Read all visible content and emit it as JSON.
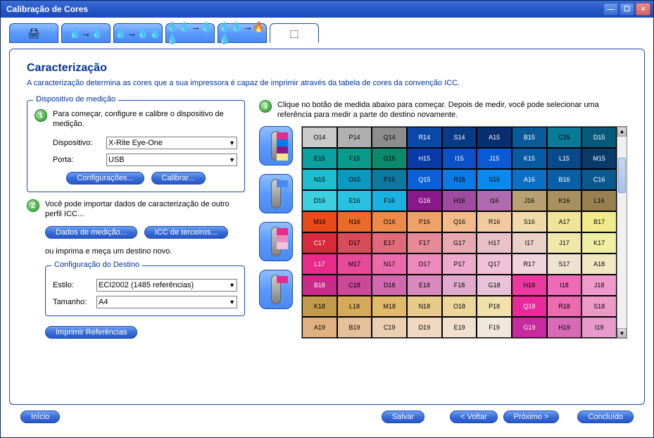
{
  "window": {
    "title": "Calibração de Cores"
  },
  "heading": "Caracterização",
  "description": "A caracterização determina as cores que a sua impressora é capaz de imprimir através da tabela de cores da convenção ICC.",
  "device_group": {
    "legend": "Dispositivo de medição",
    "step1_text": "Para começar, configure e calibre o dispositivo de medição.",
    "device_label": "Dispositivo:",
    "device_value": "X-Rite Eye-One",
    "port_label": "Porta:",
    "port_value": "USB",
    "config_btn": "Configurações...",
    "calib_btn": "Calibrar..."
  },
  "step2": {
    "text": "Você pode importar dados de caracterização de outro perfil ICC...",
    "data_btn": "Dados de medição...",
    "third_btn": "ICC de terceiros...",
    "print_new": "ou imprima e meça um destino novo."
  },
  "dest_group": {
    "legend": "Configuração do Destino",
    "style_label": "Estilo:",
    "style_value": "ECI2002 (1485 referências)",
    "size_label": "Tamanho:",
    "size_value": "A4",
    "print_ref_btn": "Imprimir Referências"
  },
  "step3": {
    "text": "Clique no botão de medida abaixo para começar. Depois de medir, você pode selecionar uma referência para medir a parte do destino novamente."
  },
  "grid": {
    "selected": "A17",
    "rows": [
      [
        {
          "l": "O14",
          "c": "#c9c9c9"
        },
        {
          "l": "P14",
          "c": "#b0b0b0"
        },
        {
          "l": "Q14",
          "c": "#8d8d8d"
        },
        {
          "l": "R14",
          "c": "#0a4aa6",
          "t": "d"
        },
        {
          "l": "S14",
          "c": "#083a86",
          "t": "d"
        },
        {
          "l": "A15",
          "c": "#083070",
          "t": "d"
        },
        {
          "l": "B15",
          "c": "#0a5a9a",
          "t": "d"
        },
        {
          "l": "C15",
          "c": "#0a7a9a"
        },
        {
          "l": "D15",
          "c": "#085a7a",
          "t": "d"
        }
      ],
      [
        {
          "l": "E15",
          "c": "#0aa0a0"
        },
        {
          "l": "F15",
          "c": "#0a9a8a"
        },
        {
          "l": "G15",
          "c": "#0a8a6a"
        },
        {
          "l": "H15",
          "c": "#0a3aa6",
          "t": "d"
        },
        {
          "l": "I15",
          "c": "#0a50c6",
          "t": "d"
        },
        {
          "l": "J15",
          "c": "#0a5ad6",
          "t": "d"
        },
        {
          "l": "K15",
          "c": "#085aa0",
          "t": "d"
        },
        {
          "l": "L15",
          "c": "#084a8a",
          "t": "d"
        },
        {
          "l": "M15",
          "c": "#083a6a",
          "t": "d"
        }
      ],
      [
        {
          "l": "N15",
          "c": "#1ac0d0"
        },
        {
          "l": "O15",
          "c": "#0a9ac0"
        },
        {
          "l": "P15",
          "c": "#0a7aa0"
        },
        {
          "l": "Q15",
          "c": "#0a60d6",
          "t": "d"
        },
        {
          "l": "R15",
          "c": "#0a7ae6"
        },
        {
          "l": "S15",
          "c": "#0a8af0"
        },
        {
          "l": "A16",
          "c": "#0a70c6",
          "t": "d"
        },
        {
          "l": "B16",
          "c": "#0a60a6",
          "t": "d"
        },
        {
          "l": "C16",
          "c": "#0a5a90",
          "t": "d"
        }
      ],
      [
        {
          "l": "D16",
          "c": "#3ad0e0"
        },
        {
          "l": "E16",
          "c": "#2ac0e0"
        },
        {
          "l": "F16",
          "c": "#1ab0e0"
        },
        {
          "l": "G16",
          "c": "#8a1a8a",
          "t": "d"
        },
        {
          "l": "H16",
          "c": "#a04aa0"
        },
        {
          "l": "I16",
          "c": "#b06ab0"
        },
        {
          "l": "J16",
          "c": "#b8a070"
        },
        {
          "l": "K16",
          "c": "#a89060"
        },
        {
          "l": "L16",
          "c": "#988050"
        }
      ],
      [
        {
          "l": "M16",
          "c": "#e84a1a"
        },
        {
          "l": "N16",
          "c": "#ea6a2a"
        },
        {
          "l": "O16",
          "c": "#ec8a4a"
        },
        {
          "l": "P16",
          "c": "#eea26a"
        },
        {
          "l": "Q16",
          "c": "#f0ba8a"
        },
        {
          "l": "R16",
          "c": "#f2caa0"
        },
        {
          "l": "S16",
          "c": "#f0daaa"
        },
        {
          "l": "A17",
          "c": "#f0e49a"
        },
        {
          "l": "B17",
          "c": "#f0ea8a"
        }
      ],
      [
        {
          "l": "C17",
          "c": "#d82a3a",
          "t": "d"
        },
        {
          "l": "D17",
          "c": "#da4a5a"
        },
        {
          "l": "E17",
          "c": "#e06a7a"
        },
        {
          "l": "F17",
          "c": "#e68a98"
        },
        {
          "l": "G17",
          "c": "#e8a8b0"
        },
        {
          "l": "H17",
          "c": "#eac0c8"
        },
        {
          "l": "I17",
          "c": "#ead0c8"
        },
        {
          "l": "J17",
          "c": "#f0e8aa"
        },
        {
          "l": "K17",
          "c": "#f0eea0"
        }
      ],
      [
        {
          "l": "L17",
          "c": "#e82a8a",
          "t": "d"
        },
        {
          "l": "M17",
          "c": "#e84a9a"
        },
        {
          "l": "N17",
          "c": "#ea6aac"
        },
        {
          "l": "O17",
          "c": "#ec8abe"
        },
        {
          "l": "P17",
          "c": "#eeaace"
        },
        {
          "l": "Q17",
          "c": "#f0c2d8"
        },
        {
          "l": "R17",
          "c": "#f0d2dc"
        },
        {
          "l": "S17",
          "c": "#f0e2d0"
        },
        {
          "l": "A18",
          "c": "#f0e8c0"
        }
      ],
      [
        {
          "l": "B18",
          "c": "#c82a8a",
          "t": "d"
        },
        {
          "l": "C18",
          "c": "#ca4a9a"
        },
        {
          "l": "D18",
          "c": "#d06aae"
        },
        {
          "l": "E18",
          "c": "#d88abe"
        },
        {
          "l": "F18",
          "c": "#e0aace"
        },
        {
          "l": "G18",
          "c": "#e8c2d8"
        },
        {
          "l": "H18",
          "c": "#ea3aa0"
        },
        {
          "l": "I18",
          "c": "#ec6ab8"
        },
        {
          "l": "J18",
          "c": "#ee9acc"
        }
      ],
      [
        {
          "l": "K18",
          "c": "#c29a4a"
        },
        {
          "l": "L18",
          "c": "#d4aa5a"
        },
        {
          "l": "M18",
          "c": "#e0ba6a"
        },
        {
          "l": "N18",
          "c": "#e8ca8a"
        },
        {
          "l": "O18",
          "c": "#ecd69a"
        },
        {
          "l": "P18",
          "c": "#f0e0aa"
        },
        {
          "l": "Q18",
          "c": "#e82a9a",
          "t": "d"
        },
        {
          "l": "R18",
          "c": "#ec6ab0"
        },
        {
          "l": "S18",
          "c": "#ee9ac6"
        }
      ],
      [
        {
          "l": "A19",
          "c": "#e0b080"
        },
        {
          "l": "B19",
          "c": "#e6c098"
        },
        {
          "l": "C19",
          "c": "#ead0b0"
        },
        {
          "l": "D19",
          "c": "#eed8c0"
        },
        {
          "l": "E19",
          "c": "#f0e0d0"
        },
        {
          "l": "F19",
          "c": "#f0e8da"
        },
        {
          "l": "G19",
          "c": "#c82aa0",
          "t": "d"
        },
        {
          "l": "H19",
          "c": "#d86ab8"
        },
        {
          "l": "I19",
          "c": "#e89acc"
        }
      ]
    ]
  },
  "toolbtn_swatches": [
    [
      "#e82a8a",
      "#0a7ae6",
      "#8a1a8a",
      "#f0ea8a"
    ],
    [
      "#4a8aef"
    ],
    [
      "#e82a8a",
      "#ec8abe",
      "#f0c2d8"
    ],
    [
      "#e82a8a"
    ]
  ],
  "tab_icons": [
    "🖨",
    "💧→💧",
    "💧→💧💧",
    "💧💧→💧💧",
    "💧💧→🔥💧",
    "⬚"
  ],
  "bottom": {
    "start": "Início",
    "save": "Salvar",
    "back": "< Voltar",
    "next": "Próximo >",
    "done": "Concluído"
  }
}
